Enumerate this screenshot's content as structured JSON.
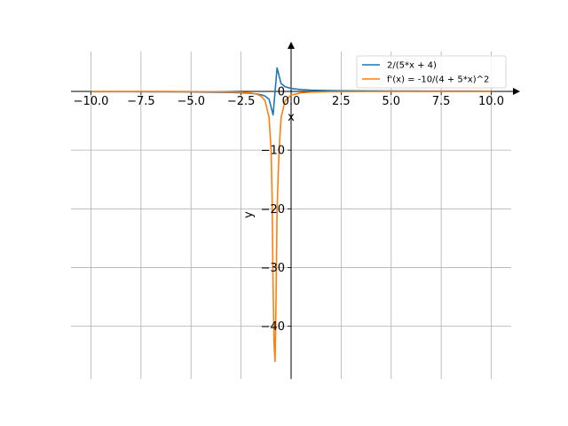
{
  "chart_data": {
    "type": "line",
    "title": "",
    "xlabel": "x",
    "ylabel": "y",
    "xlim": [
      -11.0,
      11.0
    ],
    "ylim": [
      -49,
      8
    ],
    "grid": true,
    "legend_position": "top-right",
    "x_ticks": [
      -10.0,
      -7.5,
      -5.0,
      -2.5,
      0.0,
      2.5,
      5.0,
      7.5,
      10.0
    ],
    "x_tick_labels": [
      "−10.0",
      "−7.5",
      "−5.0",
      "−2.5",
      "0.0",
      "2.5",
      "5.0",
      "7.5",
      "10.0"
    ],
    "y_ticks": [
      0,
      -10,
      -20,
      -30,
      -40
    ],
    "y_tick_labels": [
      "0",
      "−10",
      "−20",
      "−30",
      "−40"
    ],
    "series": [
      {
        "name": "2/(5*x + 4)",
        "color": "#1f77b4",
        "x": [
          -10.0,
          -9.0,
          -8.0,
          -7.0,
          -6.0,
          -5.0,
          -4.0,
          -3.0,
          -2.5,
          -2.0,
          -1.7,
          -1.5,
          -1.3,
          -1.1,
          -0.9,
          -0.7,
          -0.5,
          -0.3,
          0.0,
          0.5,
          1.0,
          2.0,
          3.0,
          4.0,
          5.0,
          6.0,
          7.0,
          8.0,
          9.0,
          10.0
        ],
        "y": [
          -0.0435,
          -0.0488,
          -0.0556,
          -0.0645,
          -0.0769,
          -0.0952,
          -0.125,
          -0.1818,
          -0.2353,
          -0.3333,
          -0.4444,
          -0.5714,
          -0.8,
          -1.3333,
          -4.0,
          4.0,
          1.3333,
          0.8,
          0.5,
          0.3077,
          0.2222,
          0.1429,
          0.1053,
          0.0833,
          0.069,
          0.0588,
          0.0513,
          0.0455,
          0.0408,
          0.037
        ]
      },
      {
        "name": "f'(x) = -10/(4 + 5*x)^2",
        "color": "#ff7f0e",
        "x": [
          -10.0,
          -9.0,
          -8.0,
          -7.0,
          -6.0,
          -5.0,
          -4.0,
          -3.0,
          -2.5,
          -2.0,
          -1.7,
          -1.5,
          -1.3,
          -1.1,
          -1.0,
          -0.95,
          -0.9,
          -0.85,
          -0.8,
          -0.75,
          -0.7,
          -0.6,
          -0.5,
          -0.3,
          0.0,
          0.5,
          1.0,
          2.0,
          3.0,
          4.0,
          5.0,
          6.0,
          7.0,
          8.0,
          9.0,
          10.0
        ],
        "y": [
          -0.0047,
          -0.006,
          -0.0077,
          -0.0104,
          -0.0148,
          -0.0227,
          -0.0391,
          -0.0826,
          -0.1384,
          -0.2778,
          -0.4938,
          -0.8163,
          -1.6,
          -4.4444,
          -10.0,
          -17.8,
          -33.0,
          -43.0,
          -46.0,
          -35.0,
          -20.0,
          -10.0,
          -4.4444,
          -1.6,
          -0.625,
          -0.2367,
          -0.1235,
          -0.051,
          -0.0277,
          -0.0174,
          -0.0119,
          -0.0087,
          -0.0066,
          -0.0052,
          -0.0042,
          -0.0034
        ]
      }
    ]
  }
}
